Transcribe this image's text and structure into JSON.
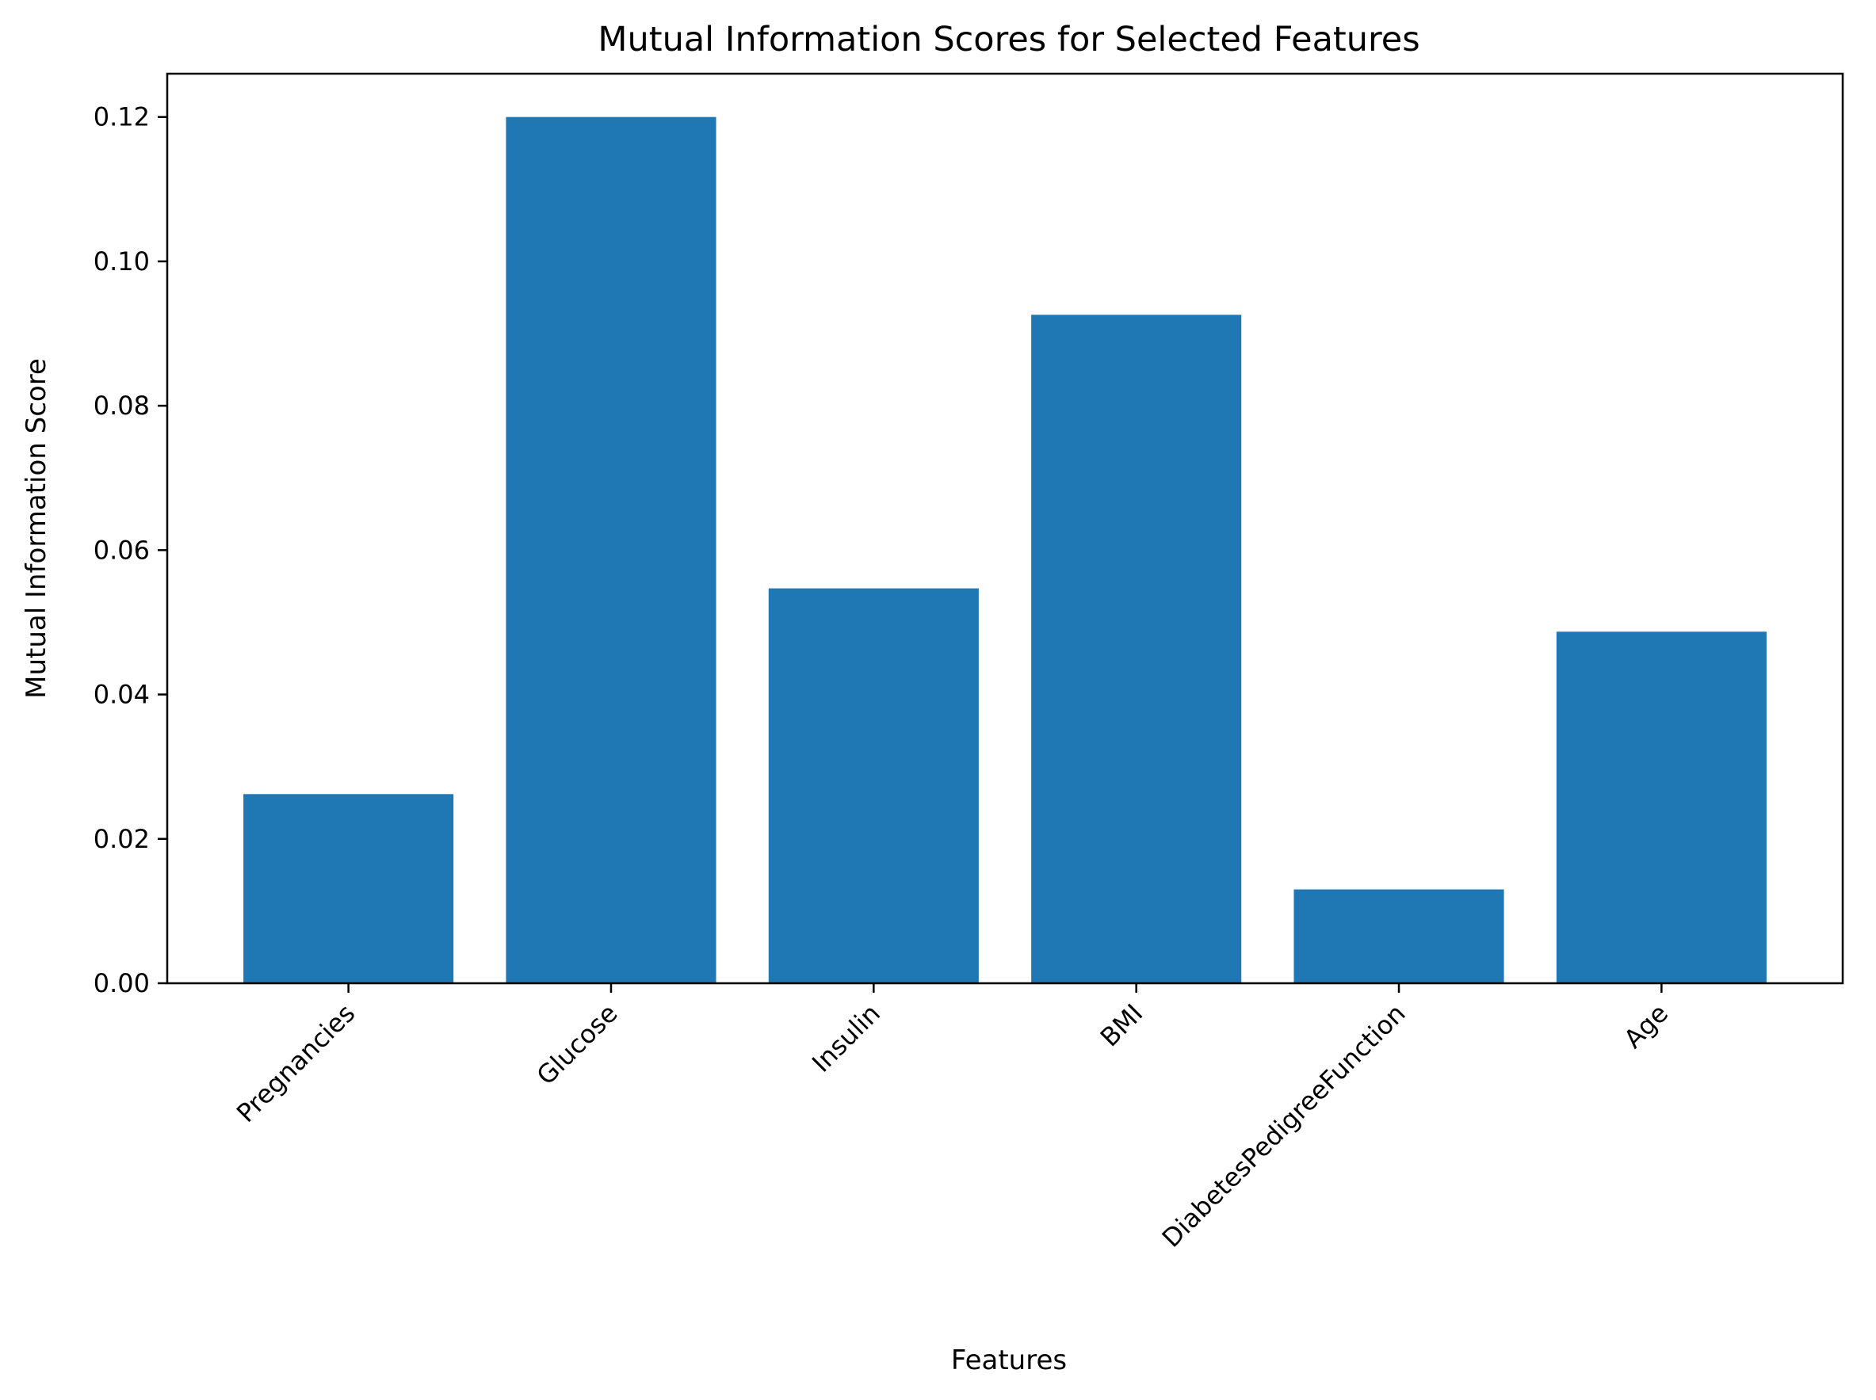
{
  "chart_data": {
    "type": "bar",
    "title": "Mutual Information Scores for Selected Features",
    "xlabel": "Features",
    "ylabel": "Mutual Information Score",
    "categories": [
      "Pregnancies",
      "Glucose",
      "Insulin",
      "BMI",
      "DiabetesPedigreeFunction",
      "Age"
    ],
    "values": [
      0.0262,
      0.12,
      0.0547,
      0.0926,
      0.013,
      0.0487
    ],
    "ylim": [
      0,
      0.126
    ],
    "yticks": [
      "0.00",
      "0.02",
      "0.04",
      "0.06",
      "0.08",
      "0.10",
      "0.12"
    ],
    "grid": false,
    "bar_color": "#1f77b4"
  }
}
